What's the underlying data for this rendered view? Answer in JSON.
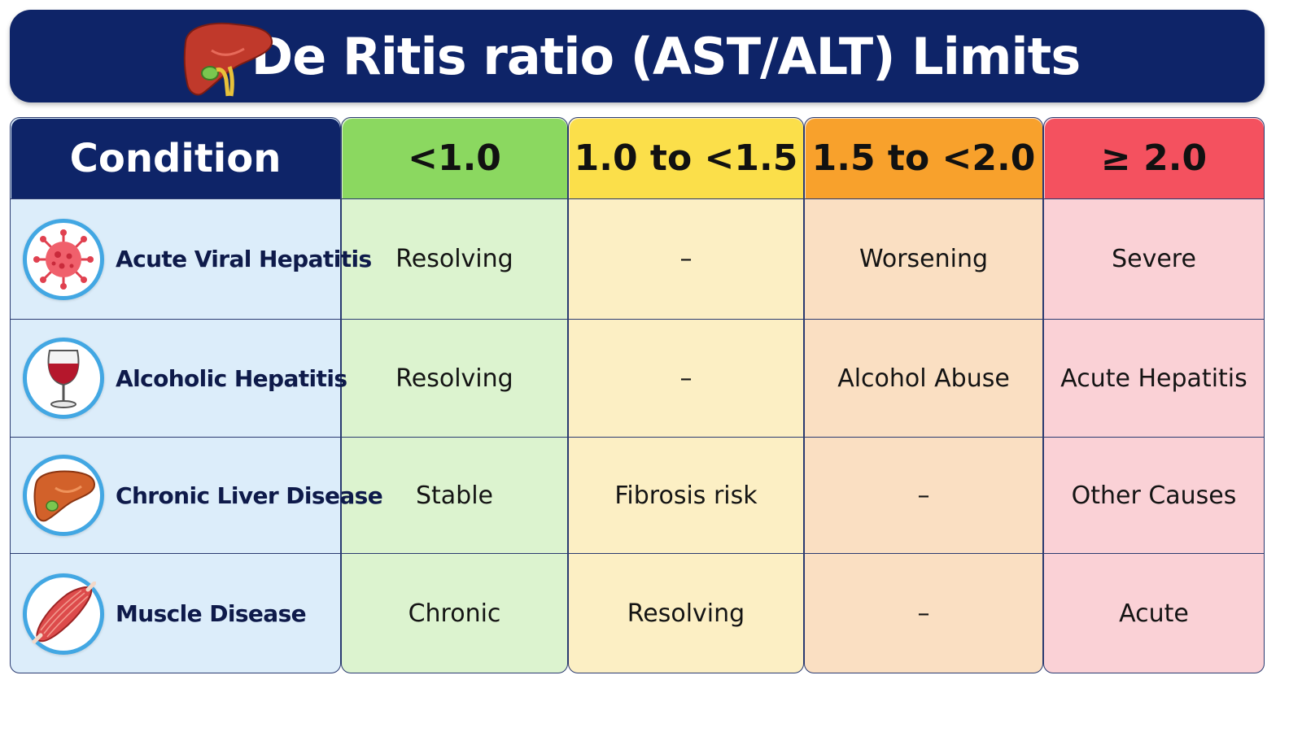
{
  "title": "De Ritis ratio (AST/ALT) Limits",
  "banner_icon": "liver-icon",
  "colors": {
    "navy": "#0e2468",
    "green_head": "#8bd860",
    "green_cell": "#dcf3cf",
    "yellow_head": "#fbdf4a",
    "yellow_cell": "#fcefc4",
    "orange_head": "#f8a12c",
    "orange_cell": "#fadfc2",
    "red_head": "#f4515f",
    "red_cell": "#fad1d6",
    "blue_cell": "#dcedfa"
  },
  "columns": {
    "condition": "Condition",
    "ranges": [
      "<1.0",
      "1.0 to <1.5",
      "1.5 to <2.0",
      "≥ 2.0"
    ]
  },
  "rows": [
    {
      "condition": "Acute Viral Hepatitis",
      "icon": "virus-icon",
      "values": [
        "Resolving",
        "–",
        "Worsening",
        "Severe"
      ]
    },
    {
      "condition": "Alcoholic Hepatitis",
      "icon": "wine-glass-icon",
      "values": [
        "Resolving",
        "–",
        "Alcohol Abuse",
        "Acute Hepatitis"
      ]
    },
    {
      "condition": "Chronic Liver Disease",
      "icon": "liver-icon",
      "values": [
        "Stable",
        "Fibrosis risk",
        "–",
        "Other Causes"
      ]
    },
    {
      "condition": "Muscle Disease",
      "icon": "muscle-icon",
      "values": [
        "Chronic",
        "Resolving",
        "–",
        "Acute"
      ]
    }
  ]
}
